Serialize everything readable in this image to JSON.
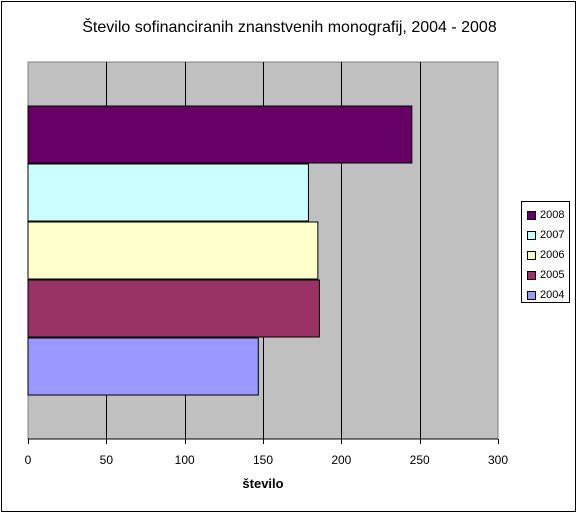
{
  "chart_data": {
    "type": "bar",
    "orientation": "horizontal",
    "title": "Število sofinanciranih znanstvenih monografij, 2004 - 2008",
    "xlabel": "število",
    "ylabel": "",
    "xlim": [
      0,
      300
    ],
    "xticks": [
      0,
      50,
      100,
      150,
      200,
      250,
      300
    ],
    "grid": true,
    "legend_position": "right",
    "plot_background": "#c0c0c0",
    "series": [
      {
        "name": "2008",
        "value": 245,
        "color": "#660066"
      },
      {
        "name": "2007",
        "value": 179,
        "color": "#ccffff"
      },
      {
        "name": "2006",
        "value": 185,
        "color": "#ffffcc"
      },
      {
        "name": "2005",
        "value": 186,
        "color": "#993366"
      },
      {
        "name": "2004",
        "value": 147,
        "color": "#9999ff"
      }
    ]
  }
}
